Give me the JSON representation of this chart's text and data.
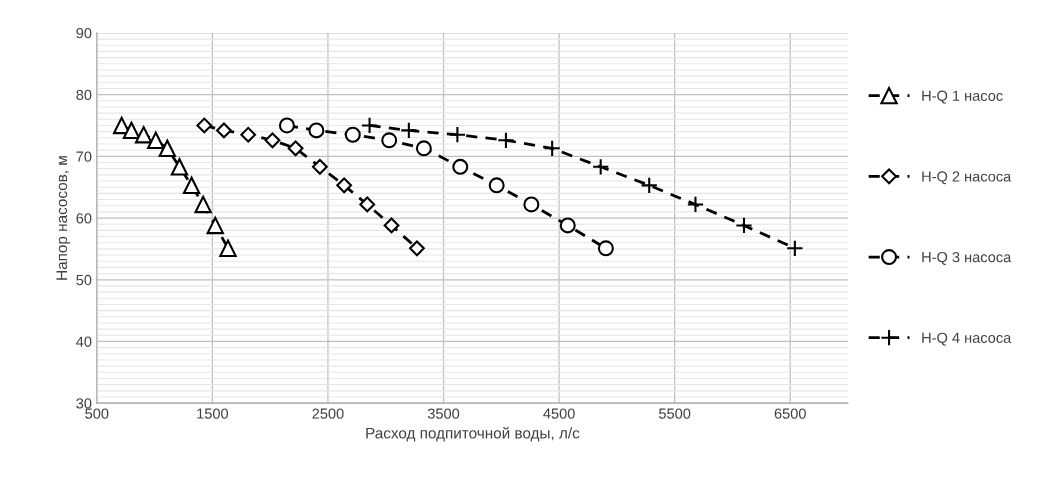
{
  "chart_data": {
    "type": "line",
    "xlabel": "Расход подпиточной воды, л/с",
    "ylabel": "Напор насосов, м",
    "xlim": [
      500,
      7000
    ],
    "xticks": [
      500,
      1500,
      2500,
      3500,
      4500,
      5500,
      6500
    ],
    "ylim": [
      30,
      90
    ],
    "yticks": [
      30,
      40,
      50,
      60,
      70,
      80,
      90
    ],
    "grid": true,
    "legend": "right",
    "line_style": "dashed",
    "series": [
      {
        "name": "H-Q 1 насос",
        "color": "#000000",
        "marker": "triangle",
        "x": [
          715,
          800,
          905,
          1010,
          1110,
          1215,
          1320,
          1420,
          1525,
          1635
        ],
        "values": [
          75,
          74.2,
          73.5,
          72.6,
          71.3,
          68.3,
          65.3,
          62.2,
          58.8,
          55.1
        ]
      },
      {
        "name": "H-Q 2 насоса",
        "color": "#000000",
        "marker": "diamond",
        "x": [
          1430,
          1600,
          1810,
          2020,
          2220,
          2430,
          2640,
          2840,
          3050,
          3270
        ],
        "values": [
          75,
          74.2,
          73.5,
          72.6,
          71.3,
          68.3,
          65.3,
          62.2,
          58.8,
          55.1
        ]
      },
      {
        "name": "H-Q 3 насоса",
        "color": "#000000",
        "marker": "circle",
        "x": [
          2145,
          2400,
          2715,
          3030,
          3330,
          3645,
          3960,
          4260,
          4575,
          4905
        ],
        "values": [
          75,
          74.2,
          73.5,
          72.6,
          71.3,
          68.3,
          65.3,
          62.2,
          58.8,
          55.1
        ]
      },
      {
        "name": "H-Q 4 насоса",
        "color": "#000000",
        "marker": "cross",
        "x": [
          2860,
          3200,
          3620,
          4040,
          4440,
          4860,
          5280,
          5680,
          6100,
          6540
        ],
        "values": [
          75,
          74.2,
          73.5,
          72.6,
          71.3,
          68.3,
          65.3,
          62.2,
          58.8,
          55.1
        ]
      }
    ]
  }
}
